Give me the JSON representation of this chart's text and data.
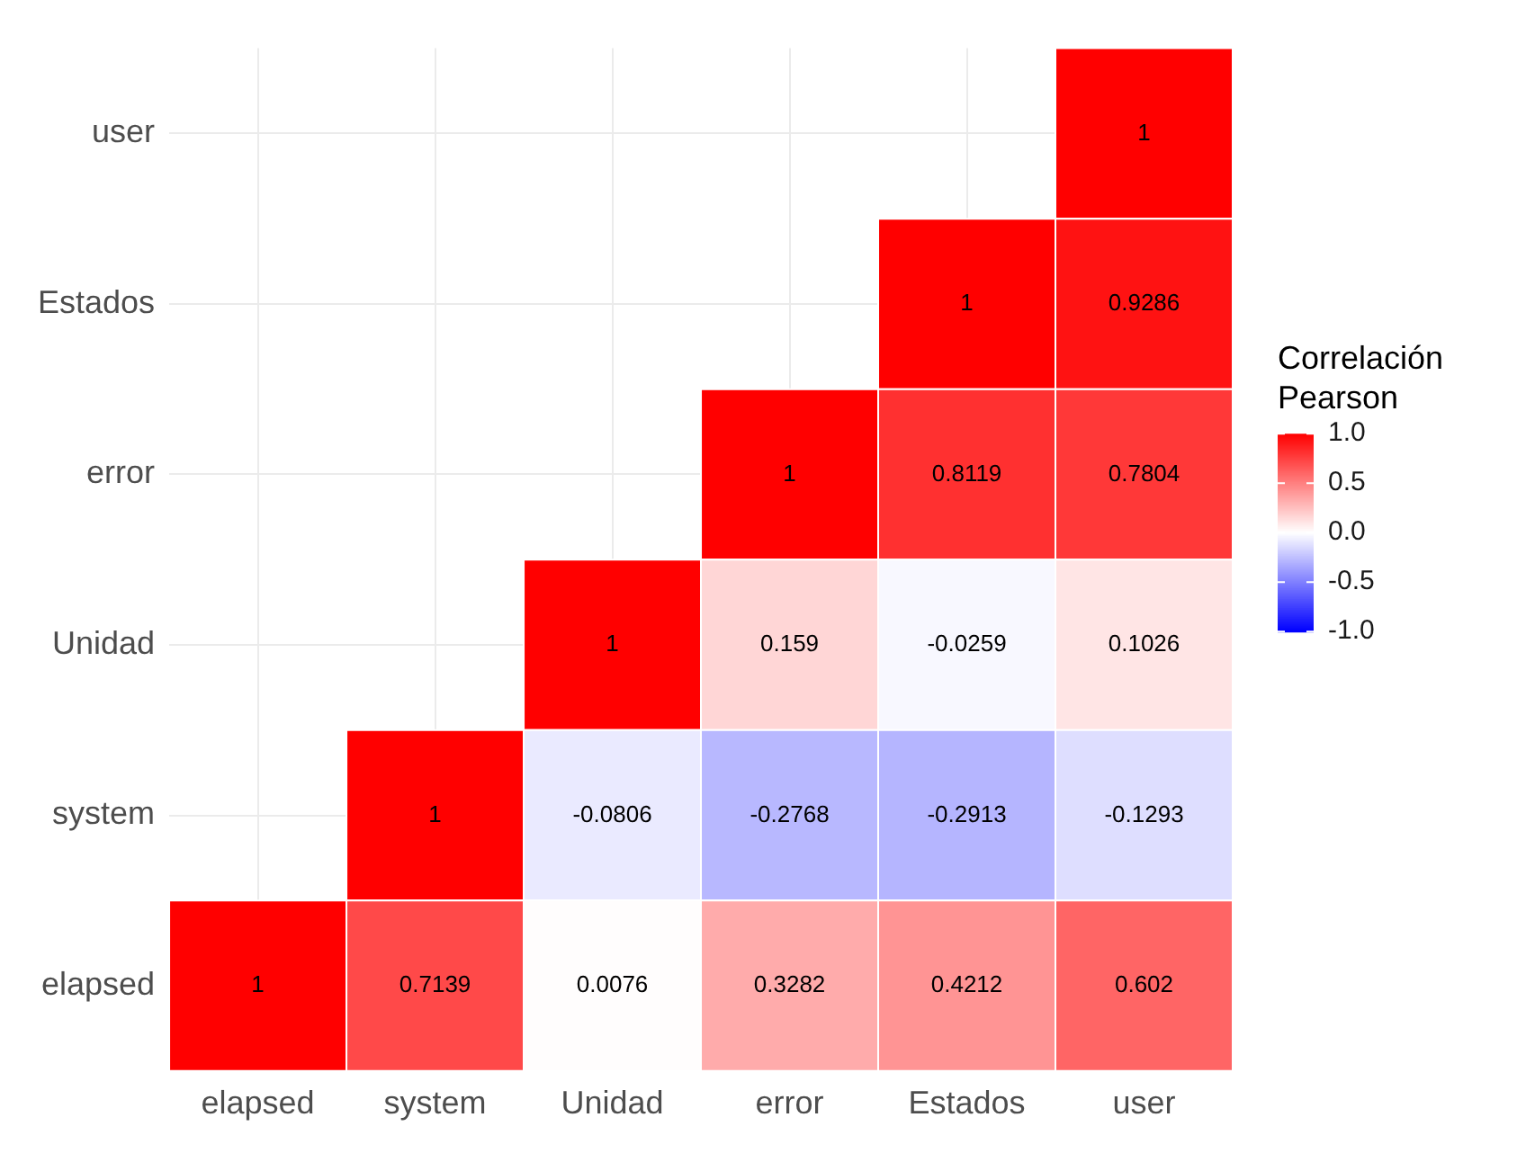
{
  "chart_data": {
    "type": "heatmap",
    "legend_title": "Correlación Pearson",
    "categories": [
      "elapsed",
      "system",
      "Unidad",
      "error",
      "Estados",
      "user"
    ],
    "y_categories": [
      "user",
      "Estados",
      "error",
      "Unidad",
      "system",
      "elapsed"
    ],
    "cells": [
      [
        null,
        null,
        null,
        null,
        null,
        1
      ],
      [
        null,
        null,
        null,
        null,
        1,
        0.9286
      ],
      [
        null,
        null,
        null,
        1,
        0.8119,
        0.7804
      ],
      [
        null,
        null,
        1,
        0.159,
        -0.0259,
        0.1026
      ],
      [
        null,
        1,
        -0.0806,
        -0.2768,
        -0.2913,
        -0.1293
      ],
      [
        1,
        0.7139,
        0.0076,
        0.3282,
        0.4212,
        0.602
      ]
    ],
    "clim": [
      -1,
      1
    ],
    "cticks": [
      {
        "value": -1,
        "label": "-1.0"
      },
      {
        "value": -0.5,
        "label": "-0.5"
      },
      {
        "value": 0,
        "label": "0.0"
      },
      {
        "value": 0.5,
        "label": "0.5"
      },
      {
        "value": 1,
        "label": "1.0"
      }
    ],
    "data_labels": true,
    "grid": true
  }
}
